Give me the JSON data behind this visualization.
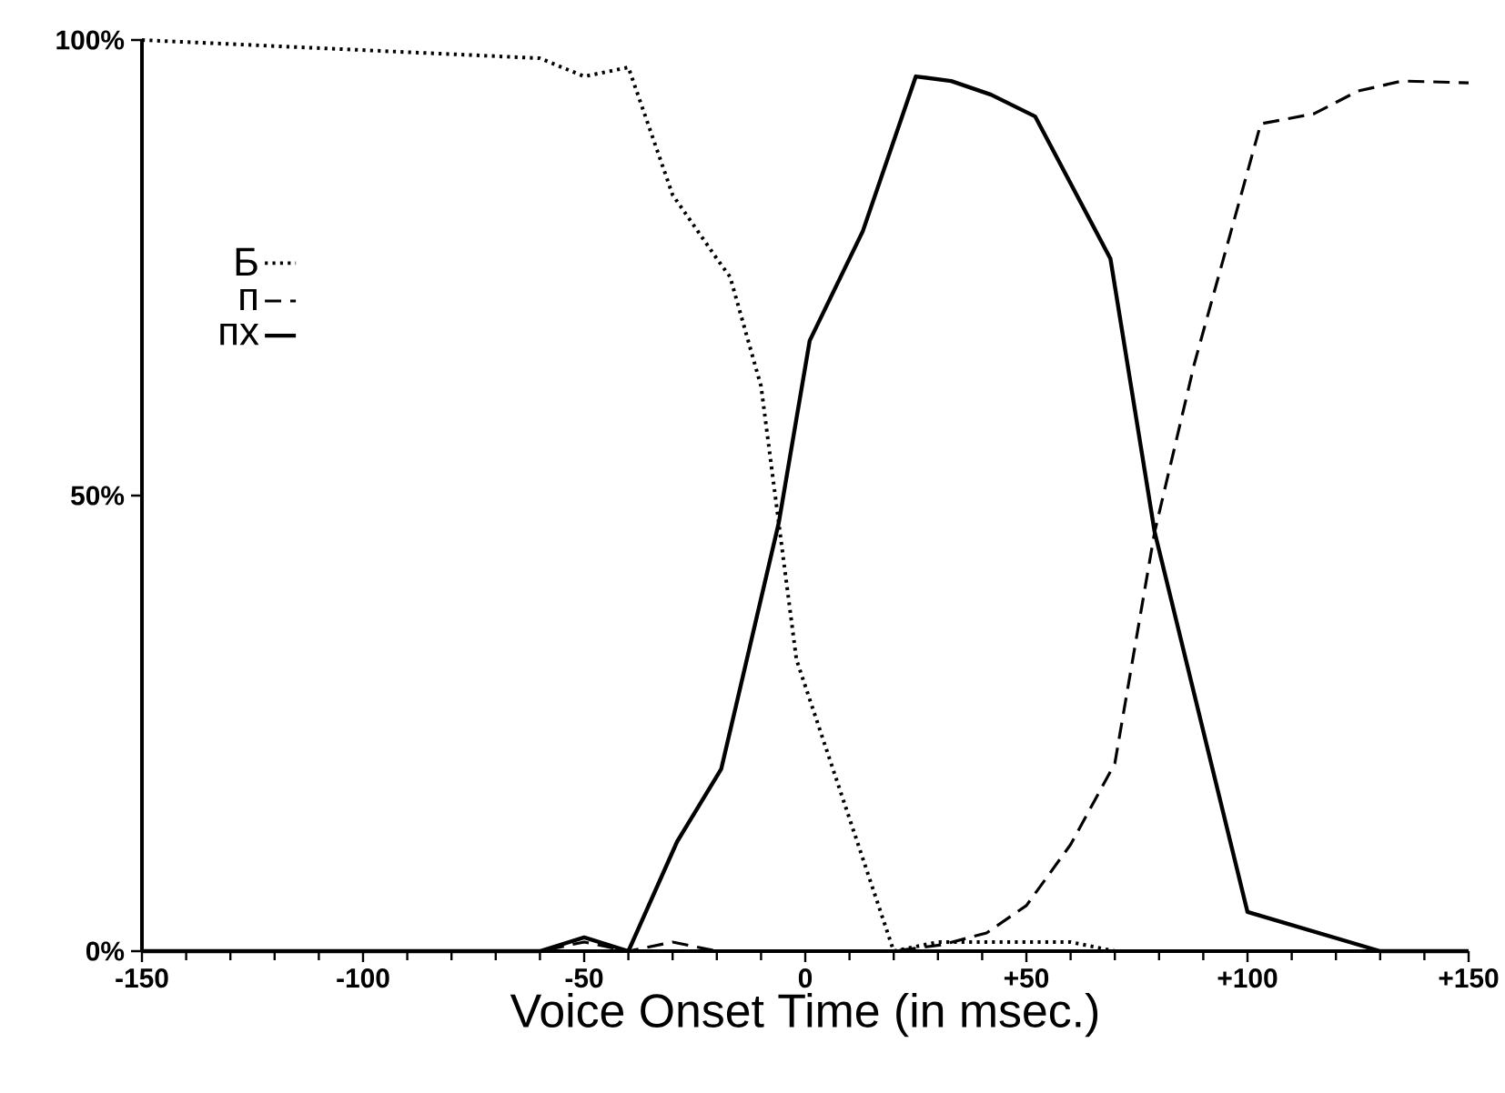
{
  "chart_data": {
    "type": "line",
    "xlabel": "Voice Onset Time (in msec.)",
    "xlim": [
      -150,
      150
    ],
    "ylim": [
      0,
      100
    ],
    "xticks": [
      -150,
      -100,
      -50,
      0,
      {
        "value": 50,
        "label": "+50"
      },
      {
        "value": 100,
        "label": "+100"
      },
      {
        "value": 150,
        "label": "+150"
      }
    ],
    "yticks": [
      {
        "value": 0,
        "label": "0%"
      },
      {
        "value": 50,
        "label": "50%"
      },
      {
        "value": 100,
        "label": "100%"
      }
    ],
    "legend": "top left",
    "grid": false,
    "series": [
      {
        "name": "Б",
        "color": "#000000",
        "line_style": "dotted",
        "x": [
          -150,
          -60,
          -50,
          -40,
          -30,
          -20,
          -17,
          -10,
          -6,
          -2,
          20,
          30,
          60,
          70
        ],
        "values": [
          100,
          98,
          96,
          97,
          83,
          76,
          74,
          62,
          47,
          32,
          0,
          1,
          1,
          0
        ]
      },
      {
        "name": "п",
        "color": "#000000",
        "line_style": "dashed",
        "x": [
          -150,
          -60,
          -50,
          -40,
          -30,
          -20,
          20,
          31,
          41,
          50,
          60,
          70,
          79,
          88,
          103,
          115,
          125,
          135,
          150
        ],
        "values": [
          0,
          0,
          1,
          0,
          1,
          0,
          0,
          0.7,
          2,
          5,
          11.7,
          20.6,
          46,
          64.5,
          90.8,
          91.9,
          94.4,
          95.5,
          95.3
        ]
      },
      {
        "name": "пх",
        "color": "#000000",
        "line_style": "solid",
        "x": [
          -150,
          -60,
          -50,
          -40,
          -29,
          -19,
          -6,
          1,
          13,
          25,
          33,
          42,
          52,
          69,
          79,
          100,
          130,
          150
        ],
        "values": [
          0,
          0,
          1.5,
          0,
          12,
          20,
          47,
          67,
          79,
          96,
          95.5,
          94,
          91.6,
          76,
          46,
          4.3,
          0,
          0
        ]
      }
    ]
  }
}
